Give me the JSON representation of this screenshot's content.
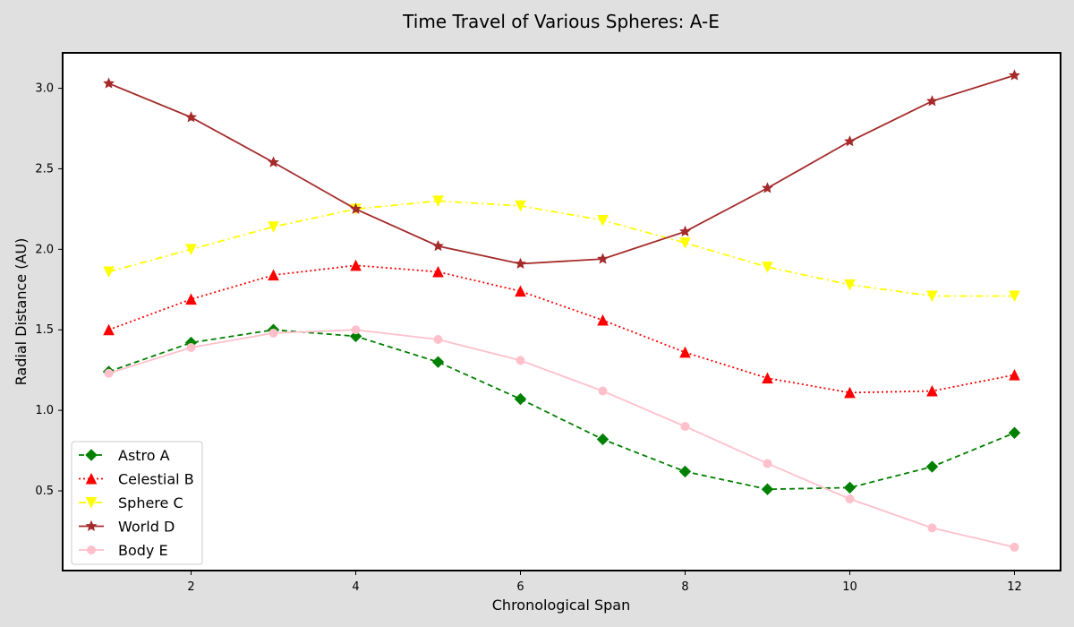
{
  "chart_data": {
    "type": "line",
    "title": "Time Travel of Various Spheres: A-E",
    "xlabel": "Chronological Span",
    "ylabel": "Radial Distance (AU)",
    "xlim": [
      0.44,
      12.56
    ],
    "ylim": [
      0.005,
      3.22
    ],
    "xticks": [
      2,
      4,
      6,
      8,
      10,
      12
    ],
    "yticks": [
      0.5,
      1.0,
      1.5,
      2.0,
      2.5,
      3.0
    ],
    "xtick_labels": [
      "2",
      "4",
      "6",
      "8",
      "10",
      "12"
    ],
    "ytick_labels": [
      "0.5",
      "1.0",
      "1.5",
      "2.0",
      "2.5",
      "3.0"
    ],
    "grid": false,
    "legend_position": "lower-left",
    "x": [
      1,
      2,
      3,
      4,
      5,
      6,
      7,
      8,
      9,
      10,
      11,
      12
    ],
    "series": [
      {
        "name": "Astro A",
        "color": "#008000",
        "line_style": "dashed",
        "marker": "diamond",
        "values": [
          1.24,
          1.42,
          1.5,
          1.46,
          1.3,
          1.07,
          0.82,
          0.62,
          0.51,
          0.52,
          0.65,
          0.86
        ]
      },
      {
        "name": "Celestial B",
        "color": "#ff0000",
        "line_style": "dotted",
        "marker": "triangle-up",
        "values": [
          1.5,
          1.69,
          1.84,
          1.9,
          1.86,
          1.74,
          1.56,
          1.36,
          1.2,
          1.11,
          1.12,
          1.22
        ]
      },
      {
        "name": "Sphere C",
        "color": "#ffff00",
        "line_style": "dashdot",
        "marker": "triangle-down",
        "values": [
          1.86,
          2.0,
          2.14,
          2.25,
          2.3,
          2.27,
          2.18,
          2.04,
          1.89,
          1.78,
          1.71,
          1.71
        ]
      },
      {
        "name": "World D",
        "color": "#a52a2a",
        "line_style": "solid",
        "marker": "star",
        "values": [
          3.03,
          2.82,
          2.54,
          2.25,
          2.02,
          1.91,
          1.94,
          2.11,
          2.38,
          2.67,
          2.92,
          3.08
        ]
      },
      {
        "name": "Body E",
        "color": "#ffc0cb",
        "line_style": "solid",
        "marker": "circle",
        "values": [
          1.23,
          1.39,
          1.48,
          1.5,
          1.44,
          1.31,
          1.12,
          0.9,
          0.67,
          0.45,
          0.27,
          0.15
        ]
      }
    ]
  }
}
